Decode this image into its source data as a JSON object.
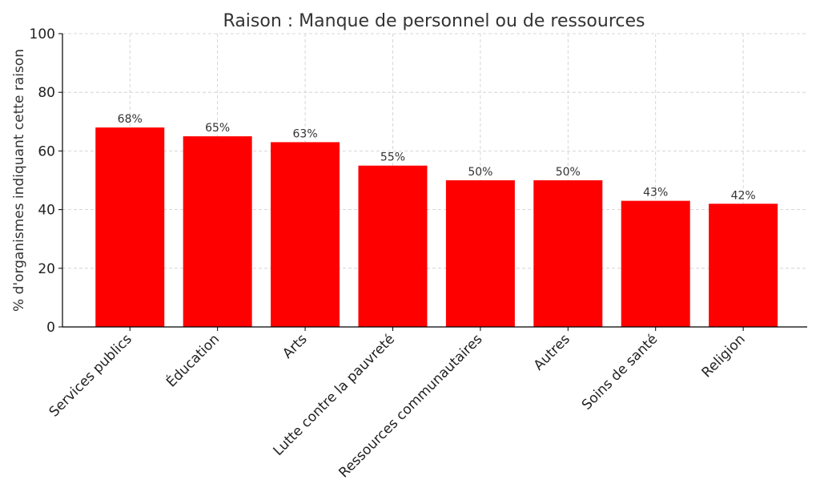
{
  "chart_data": {
    "type": "bar",
    "title": "Raison : Manque de personnel ou de ressources",
    "xlabel": "",
    "ylabel": "% d'organismes indiquant cette raison",
    "categories": [
      "Services publics",
      "Éducation",
      "Arts",
      "Lutte contre la pauvreté",
      "Ressources communautaires",
      "Autres",
      "Soins de santé",
      "Religion"
    ],
    "values": [
      68,
      65,
      63,
      55,
      50,
      50,
      43,
      42
    ],
    "data_labels": [
      "68%",
      "65%",
      "63%",
      "55%",
      "50%",
      "50%",
      "43%",
      "42%"
    ],
    "ylim": [
      0,
      100
    ],
    "yticks": [
      0,
      20,
      40,
      60,
      80,
      100
    ],
    "grid": true,
    "bar_color": "#ff0000"
  }
}
